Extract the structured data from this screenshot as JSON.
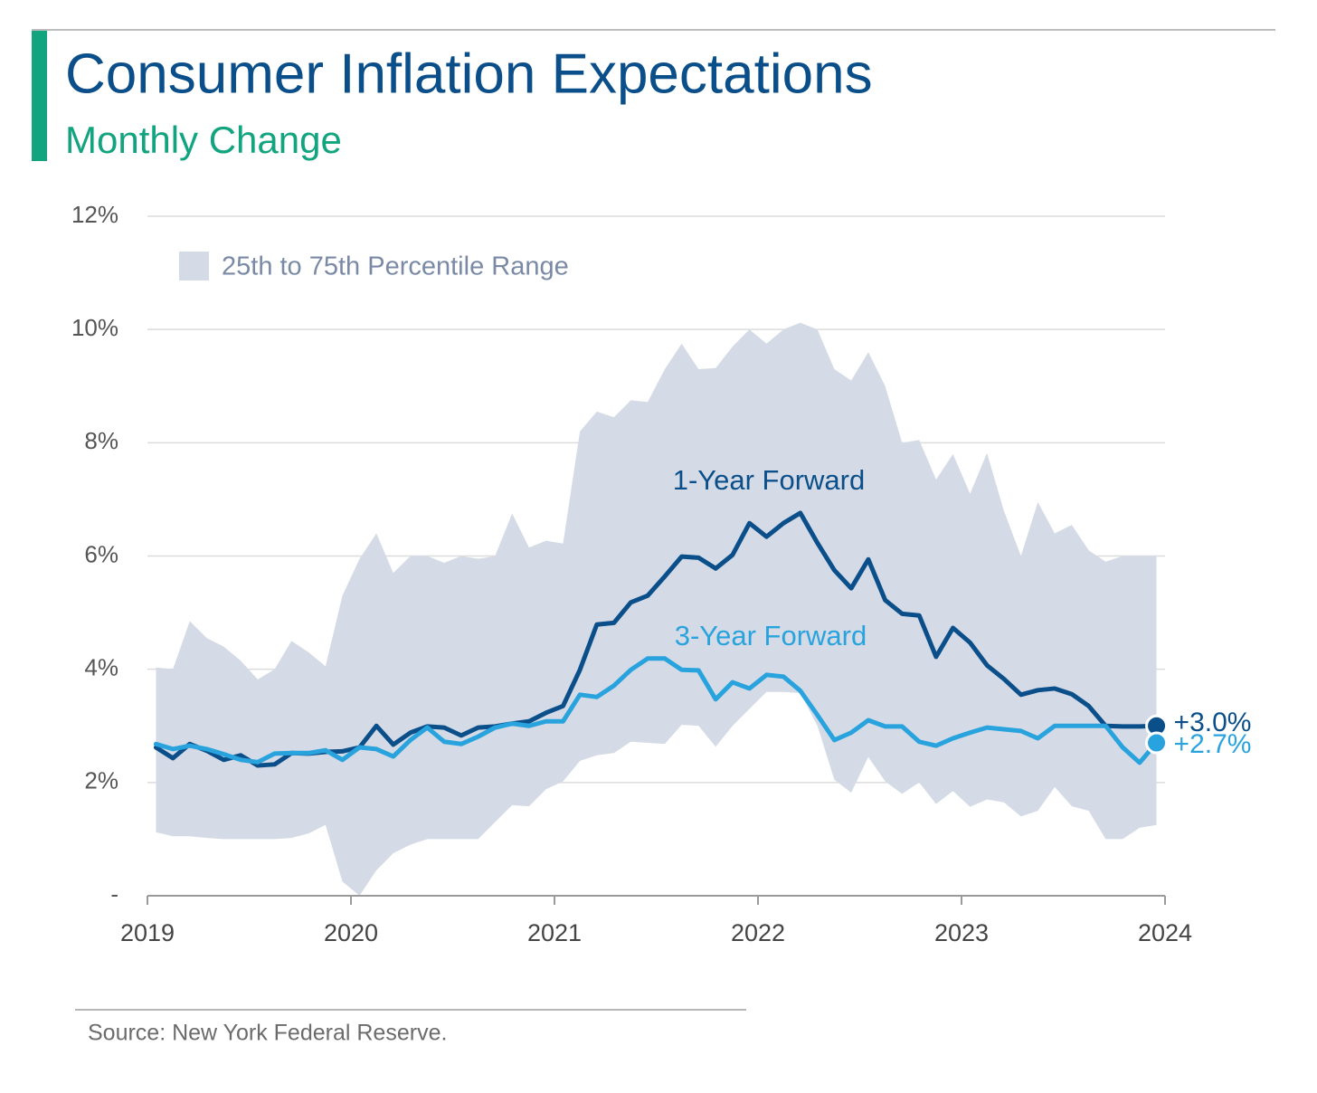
{
  "chart_data": {
    "type": "line",
    "title": "Consumer Inflation Expectations",
    "subtitle": "Monthly Change",
    "source": "Source: New York Federal Reserve.",
    "x": [
      2019.042,
      2019.125,
      2019.208,
      2019.292,
      2019.375,
      2019.458,
      2019.542,
      2019.625,
      2019.708,
      2019.792,
      2019.875,
      2019.958,
      2020.042,
      2020.125,
      2020.208,
      2020.292,
      2020.375,
      2020.458,
      2020.542,
      2020.625,
      2020.708,
      2020.792,
      2020.875,
      2020.958,
      2021.042,
      2021.125,
      2021.208,
      2021.292,
      2021.375,
      2021.458,
      2021.542,
      2021.625,
      2021.708,
      2021.792,
      2021.875,
      2021.958,
      2022.042,
      2022.125,
      2022.208,
      2022.292,
      2022.375,
      2022.458,
      2022.542,
      2022.625,
      2022.708,
      2022.792,
      2022.875,
      2022.958,
      2023.042,
      2023.125,
      2023.208,
      2023.292,
      2023.375,
      2023.458,
      2023.542,
      2023.625,
      2023.708,
      2023.792,
      2023.875,
      2023.958
    ],
    "xlim": [
      2019,
      2024
    ],
    "xticks": [
      2019,
      2020,
      2021,
      2022,
      2023,
      2024
    ],
    "ylim": [
      0,
      12
    ],
    "yticks": [
      {
        "value": 0,
        "label": "-"
      },
      {
        "value": 2,
        "label": "2%"
      },
      {
        "value": 4,
        "label": "4%"
      },
      {
        "value": 6,
        "label": "6%"
      },
      {
        "value": 8,
        "label": "8%"
      },
      {
        "value": 10,
        "label": "10%"
      },
      {
        "value": 12,
        "label": "12%"
      }
    ],
    "grid": true,
    "band": {
      "name": "25th to 75th Percentile Range",
      "color": "#d5dbe6",
      "upper": [
        4.03,
        4.0,
        4.85,
        4.55,
        4.4,
        4.15,
        3.82,
        4.0,
        4.5,
        4.3,
        4.05,
        5.3,
        5.95,
        6.4,
        5.7,
        6.0,
        6.0,
        5.88,
        6.0,
        5.95,
        6.0,
        6.75,
        6.15,
        6.27,
        6.22,
        8.2,
        8.55,
        8.45,
        8.75,
        8.72,
        9.3,
        9.75,
        9.3,
        9.32,
        9.7,
        10.0,
        9.75,
        10.0,
        10.12,
        10.0,
        9.3,
        9.1,
        9.6,
        9.0,
        8.0,
        8.05,
        7.35,
        7.8,
        7.1,
        7.82,
        6.8,
        6.0,
        6.95,
        6.4,
        6.55,
        6.1,
        5.9,
        6.0,
        6.0,
        6.0
      ],
      "lower": [
        1.12,
        1.05,
        1.05,
        1.02,
        1.0,
        1.0,
        1.0,
        1.0,
        1.02,
        1.1,
        1.25,
        0.25,
        0.0,
        0.45,
        0.75,
        0.9,
        1.0,
        1.0,
        1.0,
        1.0,
        1.3,
        1.6,
        1.58,
        1.88,
        2.02,
        2.38,
        2.48,
        2.52,
        2.72,
        2.7,
        2.68,
        3.02,
        3.0,
        2.63,
        3.0,
        3.3,
        3.6,
        3.6,
        3.58,
        3.0,
        2.05,
        1.82,
        2.45,
        2.02,
        1.8,
        2.0,
        1.62,
        1.85,
        1.57,
        1.7,
        1.65,
        1.4,
        1.5,
        1.92,
        1.58,
        1.5,
        1.0,
        1.0,
        1.2,
        1.25
      ]
    },
    "series": [
      {
        "name": "1-Year Forward",
        "color": "#0b4f8a",
        "values": [
          2.62,
          2.43,
          2.68,
          2.56,
          2.4,
          2.48,
          2.3,
          2.32,
          2.52,
          2.51,
          2.54,
          2.55,
          2.62,
          3.0,
          2.67,
          2.88,
          2.99,
          2.97,
          2.83,
          2.97,
          2.99,
          3.04,
          3.08,
          3.23,
          3.35,
          3.99,
          4.79,
          4.82,
          5.18,
          5.3,
          5.64,
          5.99,
          5.97,
          5.78,
          6.02,
          6.58,
          6.34,
          6.58,
          6.76,
          6.23,
          5.75,
          5.43,
          5.94,
          5.22,
          4.98,
          4.95,
          4.22,
          4.73,
          4.47,
          4.07,
          3.83,
          3.55,
          3.63,
          3.66,
          3.56,
          3.35,
          3.0,
          2.99,
          2.99,
          3.0
        ],
        "value_labels": [
          null,
          null,
          null,
          null,
          null,
          null,
          null,
          null,
          null,
          null,
          null,
          null,
          null,
          null,
          null,
          null,
          null,
          null,
          null,
          null,
          null,
          null,
          null,
          null,
          null,
          null,
          null,
          null,
          null,
          null,
          null,
          null,
          null,
          null,
          null,
          null,
          null,
          null,
          null,
          null,
          null,
          null,
          null,
          null,
          null,
          null,
          null,
          null,
          null,
          null,
          null,
          null,
          null,
          null,
          null,
          null,
          null,
          null,
          null,
          "+3.0%"
        ]
      },
      {
        "name": "3-Year Forward",
        "color": "#29a3dd",
        "values": [
          2.68,
          2.59,
          2.65,
          2.59,
          2.5,
          2.4,
          2.36,
          2.51,
          2.52,
          2.52,
          2.57,
          2.4,
          2.62,
          2.59,
          2.46,
          2.75,
          2.97,
          2.72,
          2.68,
          2.81,
          2.97,
          3.04,
          3.0,
          3.08,
          3.08,
          3.55,
          3.51,
          3.71,
          3.99,
          4.19,
          4.19,
          3.99,
          3.98,
          3.47,
          3.77,
          3.66,
          3.9,
          3.87,
          3.62,
          3.19,
          2.75,
          2.88,
          3.1,
          2.99,
          2.99,
          2.72,
          2.65,
          2.78,
          2.88,
          2.97,
          2.94,
          2.91,
          2.78,
          3.0,
          3.0,
          3.0,
          3.0,
          2.62,
          2.35,
          2.7
        ],
        "value_labels": [
          null,
          null,
          null,
          null,
          null,
          null,
          null,
          null,
          null,
          null,
          null,
          null,
          null,
          null,
          null,
          null,
          null,
          null,
          null,
          null,
          null,
          null,
          null,
          null,
          null,
          null,
          null,
          null,
          null,
          null,
          null,
          null,
          null,
          null,
          null,
          null,
          null,
          null,
          null,
          null,
          null,
          null,
          null,
          null,
          null,
          null,
          null,
          null,
          null,
          null,
          null,
          null,
          null,
          null,
          null,
          null,
          null,
          null,
          null,
          "+2.7%"
        ]
      }
    ]
  }
}
